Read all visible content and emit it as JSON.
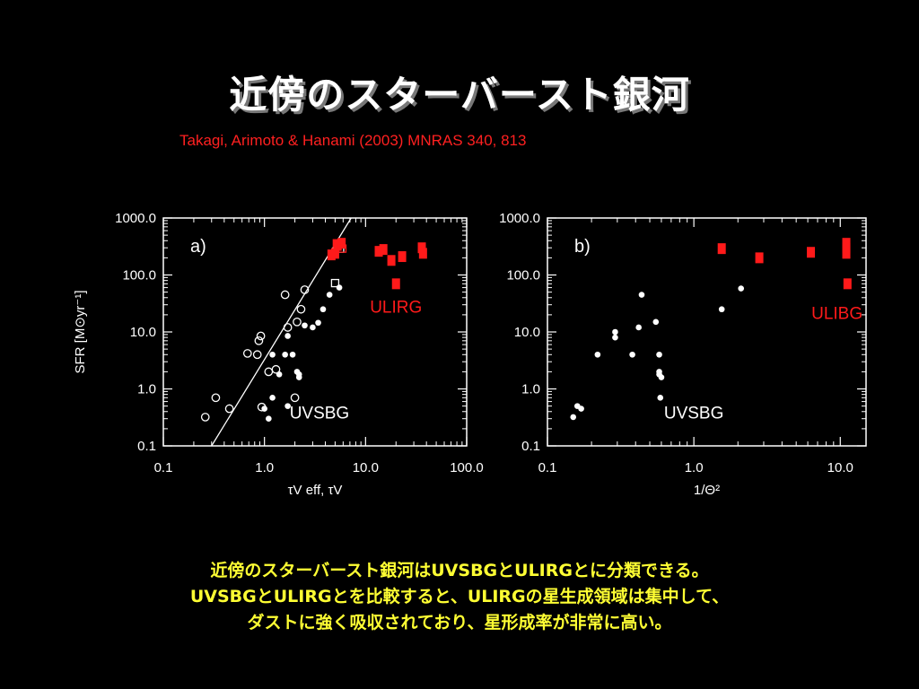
{
  "slide": {
    "title": "近傍のスターバースト銀河",
    "citation": "Takagi, Arimoto & Hanami (2003) MNRAS 340, 813",
    "summary": [
      "近傍のスターバースト銀河はUVSBGとULIRGとに分類できる。",
      "UVSBGとULIRGとを比較すると、ULIRGの星生成領域は集中して、",
      "ダストに強く吸収されており、星形成率が非常に高い。"
    ]
  },
  "colors": {
    "background": "#000000",
    "axis": "#ffffff",
    "uvsbg_marker": "#ffffff",
    "ulirg_marker": "#ff1a1a",
    "label_red": "#ff1a1a",
    "summary_text": "#ffff33",
    "citation": "#ff2020"
  },
  "chart_data": [
    {
      "type": "scatter",
      "panel_label": "a)",
      "xscale": "log",
      "yscale": "log",
      "xlim": [
        0.1,
        100.0
      ],
      "ylim": [
        0.1,
        1000.0
      ],
      "xticks": [
        "0.1",
        "1.0",
        "10.0",
        "100.0"
      ],
      "yticks": [
        "0.1",
        "1.0",
        "10.0",
        "100.0",
        "1000.0"
      ],
      "ylabel": "SFR [M⊙yr⁻¹]",
      "xlabel": "τV eff, τV",
      "annotations": [
        {
          "text": "ULIRG",
          "x": 20,
          "y": 22,
          "color": "#ff1a1a"
        },
        {
          "text": "UVSBG",
          "x": 3.5,
          "y": 0.3,
          "color": "#ffffff"
        }
      ],
      "fit_line": {
        "x": [
          0.3,
          7.2
        ],
        "y": [
          0.1,
          1000.0
        ]
      },
      "series": [
        {
          "name": "UVSBG",
          "marker": "filled-circle",
          "color": "#ffffff",
          "x": [
            1.0,
            1.1,
            1.2,
            1.2,
            1.4,
            1.6,
            1.7,
            1.7,
            1.9,
            2.1,
            2.2,
            2.2,
            2.5,
            3.0,
            3.4,
            3.8,
            4.4,
            5.5
          ],
          "y": [
            0.45,
            0.3,
            0.7,
            4.0,
            1.8,
            4.0,
            8.5,
            0.5,
            4.0,
            2.0,
            1.8,
            1.6,
            13.0,
            12.0,
            14.5,
            25.0,
            45.0,
            60.0
          ]
        },
        {
          "name": "UVSBG-tau-eff",
          "marker": "open-circle",
          "color": "#ffffff",
          "x": [
            0.26,
            0.33,
            0.45,
            0.68,
            0.85,
            0.88,
            0.92,
            0.94,
            1.1,
            1.3,
            1.6,
            1.7,
            2.0,
            2.1,
            2.3,
            2.5
          ],
          "y": [
            0.32,
            0.7,
            0.45,
            4.2,
            4.0,
            7.0,
            8.5,
            0.48,
            2.0,
            2.2,
            45.0,
            12.0,
            0.7,
            15.0,
            25.0,
            55.0
          ]
        },
        {
          "name": "UVSBG-tau",
          "marker": "open-square",
          "color": "#ffffff",
          "x": [
            5.0,
            5.6
          ],
          "y": [
            72.0,
            290.0
          ]
        },
        {
          "name": "ULIRG",
          "marker": "filled-square",
          "color": "#ff1a1a",
          "x": [
            4.6,
            5.0,
            5.3,
            5.8,
            13.5,
            15.0,
            18.0,
            20.0,
            23.0,
            36.0,
            37.0
          ],
          "y": [
            225.0,
            240.0,
            330.0,
            360.0,
            260.0,
            280.0,
            180.0,
            70.0,
            210.0,
            300.0,
            240.0
          ]
        },
        {
          "name": "ULIRG-open",
          "marker": "open-square",
          "color": "#ff1a1a",
          "x": [
            5.2,
            5.9
          ],
          "y": [
            360.0,
            290.0
          ]
        }
      ]
    },
    {
      "type": "scatter",
      "panel_label": "b)",
      "xscale": "log",
      "yscale": "log",
      "xlim": [
        0.1,
        15.0
      ],
      "ylim": [
        0.1,
        1000.0
      ],
      "xticks": [
        "0.1",
        "1.0",
        "10.0"
      ],
      "yticks": [
        "0.1",
        "1.0",
        "10.0",
        "100.0",
        "1000.0"
      ],
      "xlabel": "1/Θ²",
      "annotations": [
        {
          "text": "ULIBG",
          "x": 9.5,
          "y": 17,
          "color": "#ff1a1a"
        },
        {
          "text": "UVSBG",
          "x": 1.0,
          "y": 0.3,
          "color": "#ffffff"
        }
      ],
      "series": [
        {
          "name": "UVSBG",
          "marker": "filled-circle",
          "color": "#ffffff",
          "x": [
            0.15,
            0.16,
            0.17,
            0.22,
            0.29,
            0.29,
            0.38,
            0.42,
            0.44,
            0.55,
            0.58,
            0.58,
            0.58,
            0.59,
            0.6,
            1.55,
            2.1
          ],
          "y": [
            0.32,
            0.5,
            0.45,
            4.0,
            8.0,
            10.0,
            4.0,
            12.0,
            45.0,
            15.0,
            4.0,
            2.0,
            1.8,
            0.7,
            1.6,
            25.0,
            58.0
          ]
        },
        {
          "name": "ULIRG",
          "marker": "filled-square",
          "color": "#ff1a1a",
          "x": [
            1.55,
            2.8,
            6.3,
            11.0,
            11.0,
            11.0,
            11.2
          ],
          "y": [
            290.0,
            200.0,
            250.0,
            360.0,
            300.0,
            240.0,
            70.0
          ]
        }
      ]
    }
  ]
}
